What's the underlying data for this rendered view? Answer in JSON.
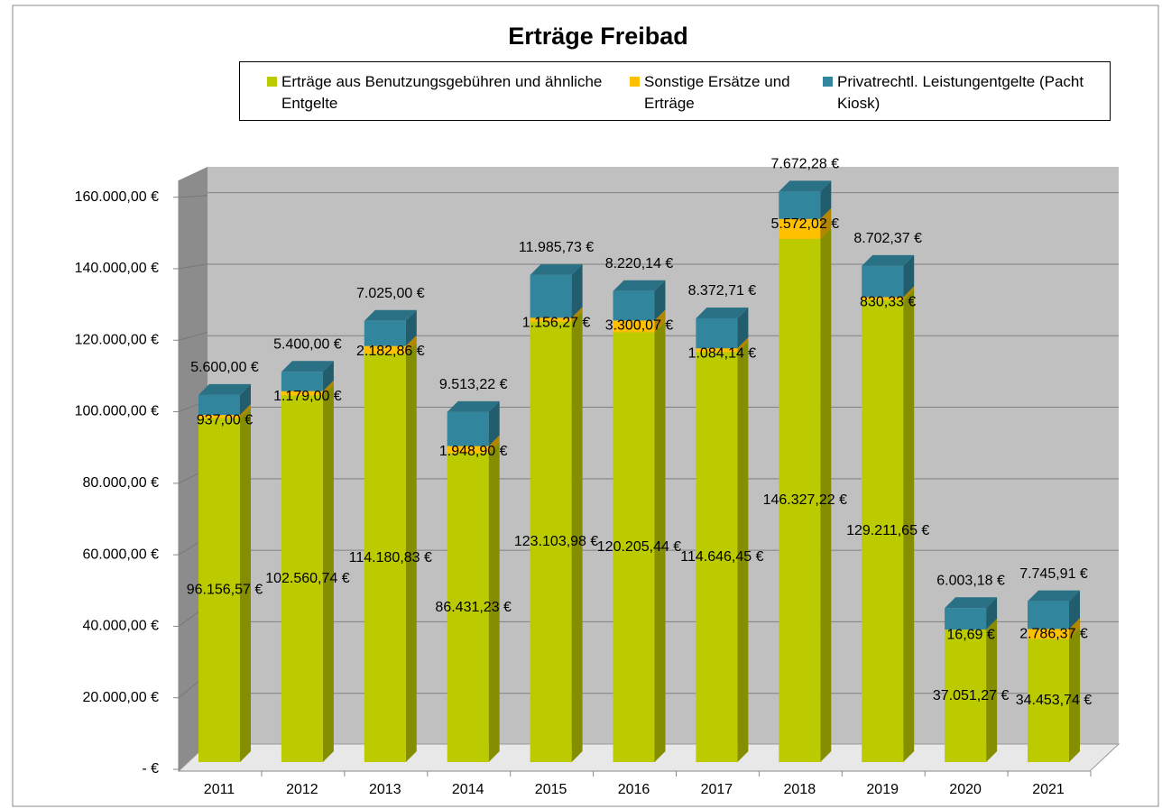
{
  "chart_data": {
    "type": "bar3d_stacked",
    "title": "Erträge Freibad",
    "categories": [
      "2011",
      "2012",
      "2013",
      "2014",
      "2015",
      "2016",
      "2017",
      "2018",
      "2019",
      "2020",
      "2021"
    ],
    "series": [
      {
        "name": "Erträge aus Benutzungsgebühren und ähnliche Entgelte",
        "color": "#bccb00",
        "values": [
          96156.57,
          102560.74,
          114180.83,
          86431.23,
          123103.98,
          120205.44,
          114646.45,
          146327.22,
          129211.65,
          37051.27,
          34453.74
        ],
        "value_labels": [
          "96.156,57 €",
          "102.560,74 €",
          "114.180,83 €",
          "86.431,23 €",
          "123.103,98 €",
          "120.205,44 €",
          "114.646,45 €",
          "146.327,22 €",
          "129.211,65 €",
          "37.051,27 €",
          "34.453,74 €"
        ]
      },
      {
        "name": "Sonstige Ersätze und Erträge",
        "color": "#ffc000",
        "values": [
          937.0,
          1179.0,
          2182.86,
          1948.9,
          1156.27,
          3300.07,
          1084.14,
          5572.02,
          830.33,
          16.69,
          2786.37
        ],
        "value_labels": [
          "937,00 €",
          "1.179,00 €",
          "2.182,86 €",
          "1.948,90 €",
          "1.156,27 €",
          "3.300,07 €",
          "1.084,14 €",
          "5.572,02 €",
          "830,33 €",
          "16,69 €",
          "2.786,37 €"
        ]
      },
      {
        "name": "Privatrechtl. Leistungentgelte (Pacht Kiosk)",
        "color": "#31859c",
        "values": [
          5600.0,
          5400.0,
          7025.0,
          9513.22,
          11985.73,
          8220.14,
          8372.71,
          7672.28,
          8702.37,
          6003.18,
          7745.91
        ],
        "value_labels": [
          "5.600,00 €",
          "5.400,00 €",
          "7.025,00 €",
          "9.513,22 €",
          "11.985,73 €",
          "8.220,14 €",
          "8.372,71 €",
          "7.672,28 €",
          "8.702,37 €",
          "6.003,18 €",
          "7.745,91 €"
        ]
      }
    ],
    "ylim": [
      0,
      170000
    ],
    "yticks": [
      {
        "value": 0,
        "label": "-  €"
      },
      {
        "value": 20000,
        "label": "20.000,00 €"
      },
      {
        "value": 40000,
        "label": "40.000,00 €"
      },
      {
        "value": 60000,
        "label": "60.000,00 €"
      },
      {
        "value": 80000,
        "label": "80.000,00 €"
      },
      {
        "value": 100000,
        "label": "100.000,00 €"
      },
      {
        "value": 120000,
        "label": "120.000,00 €"
      },
      {
        "value": 140000,
        "label": "140.000,00 €"
      },
      {
        "value": 160000,
        "label": "160.000,00 €"
      }
    ],
    "grid": true,
    "legend": "top"
  }
}
